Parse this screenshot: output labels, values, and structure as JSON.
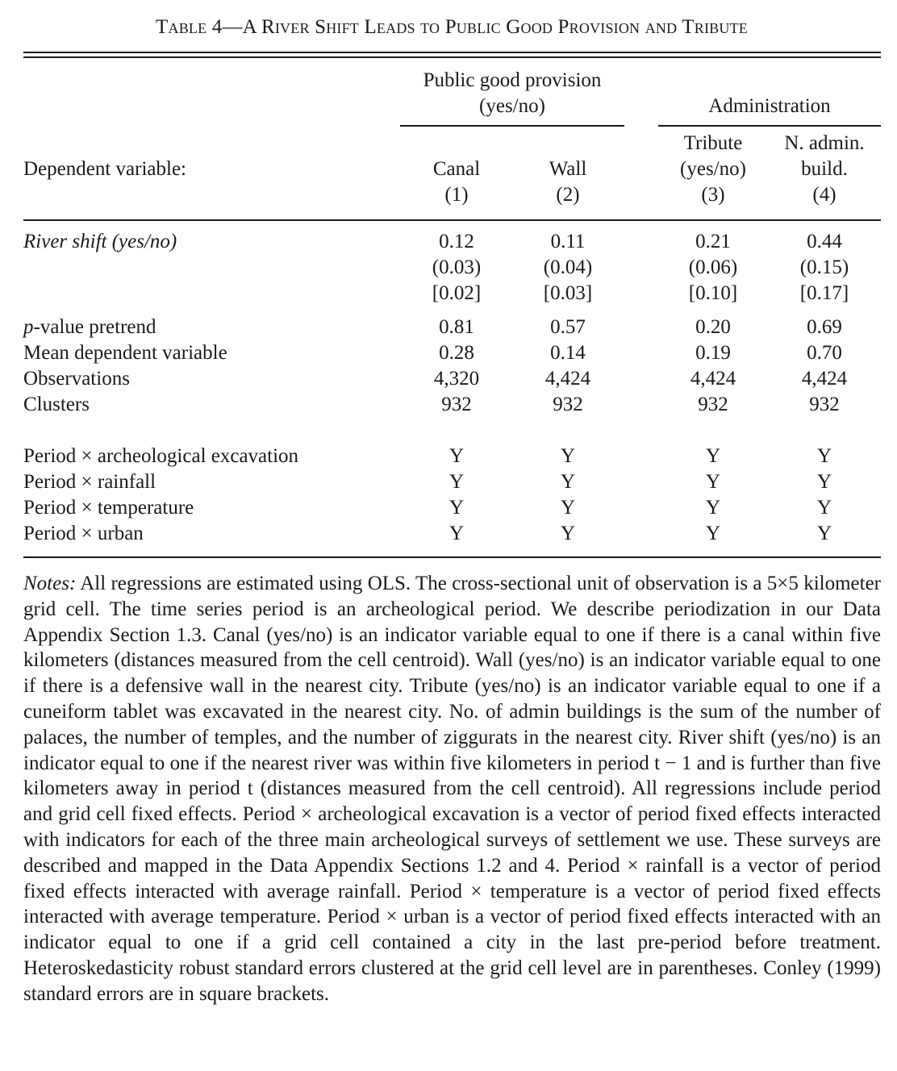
{
  "table": {
    "title_prefix": "Table 4",
    "title_rest": "—A River Shift Leads to Public Good Provision and Tribute",
    "group_public_line1": "Public good provision",
    "group_public_line2": "(yes/no)",
    "group_admin": "Administration",
    "dependent_label": "Dependent variable:",
    "columns": [
      {
        "name1": "",
        "name2": "Canal",
        "num": "(1)"
      },
      {
        "name1": "",
        "name2": "Wall",
        "num": "(2)"
      },
      {
        "name1": "Tribute",
        "name2": "(yes/no)",
        "num": "(3)"
      },
      {
        "name1": "N. admin.",
        "name2": "build.",
        "num": "(4)"
      }
    ],
    "river_label_italic": "River shift",
    "river_label_rest": " (yes/no)",
    "coef": [
      "0.12",
      "0.11",
      "0.21",
      "0.44"
    ],
    "se": [
      "(0.03)",
      "(0.04)",
      "(0.06)",
      "(0.15)"
    ],
    "conley": [
      "[0.02]",
      "[0.03]",
      "[0.10]",
      "[0.17]"
    ],
    "pretrend_label_italic": "p",
    "pretrend_label_rest": "-value pretrend",
    "pretrend": [
      "0.81",
      "0.57",
      "0.20",
      "0.69"
    ],
    "mean_label": "Mean dependent variable",
    "mean": [
      "0.28",
      "0.14",
      "0.19",
      "0.70"
    ],
    "obs_label": "Observations",
    "obs": [
      "4,320",
      "4,424",
      "4,424",
      "4,424"
    ],
    "clusters_label": "Clusters",
    "clusters": [
      "932",
      "932",
      "932",
      "932"
    ],
    "controls": [
      {
        "label": "Period × archeological excavation",
        "values": [
          "Y",
          "Y",
          "Y",
          "Y"
        ]
      },
      {
        "label": "Period × rainfall",
        "values": [
          "Y",
          "Y",
          "Y",
          "Y"
        ]
      },
      {
        "label": "Period × temperature",
        "values": [
          "Y",
          "Y",
          "Y",
          "Y"
        ]
      },
      {
        "label": "Period × urban",
        "values": [
          "Y",
          "Y",
          "Y",
          "Y"
        ]
      }
    ]
  },
  "notes": {
    "label": "Notes:",
    "text": "All regressions are estimated using OLS. The cross-sectional unit of observation is a 5×5 kilometer grid cell. The time series period is an archeological period. We describe periodization in our Data Appendix Section 1.3. Canal (yes/no) is an indicator variable equal to one if there is a canal within five kilometers (distances measured from the cell centroid). Wall (yes/no) is an indicator variable equal to one if there is a defensive wall in the nearest city. Tribute (yes/no) is an indicator variable equal to one if a cuneiform tablet was excavated in the nearest city. No. of admin buildings is the sum of the number of palaces, the number of temples, and the number of ziggurats in the nearest city. River shift (yes/no) is an indicator equal to one if the nearest river was within five kilometers in period t − 1 and is further than five kilometers away in period t (distances measured from the cell centroid). All regressions include period and grid cell fixed effects. Period × archeological excavation is a vector of period fixed effects interacted with indicators for each of the three main archeological surveys of settlement we use. These surveys are described and mapped in the Data Appendix Sections 1.2 and 4. Period × rainfall is a vector of period fixed effects interacted with average rainfall. Period × temperature is a vector of period fixed effects interacted with average temperature. Period × urban is a vector of period fixed effects interacted with an indicator equal to one if a grid cell contained a city in the last pre-period before treatment. Heteroskedasticity robust standard errors clustered at the grid cell level are in parentheses. Conley (1999) standard errors are in square brackets."
  }
}
